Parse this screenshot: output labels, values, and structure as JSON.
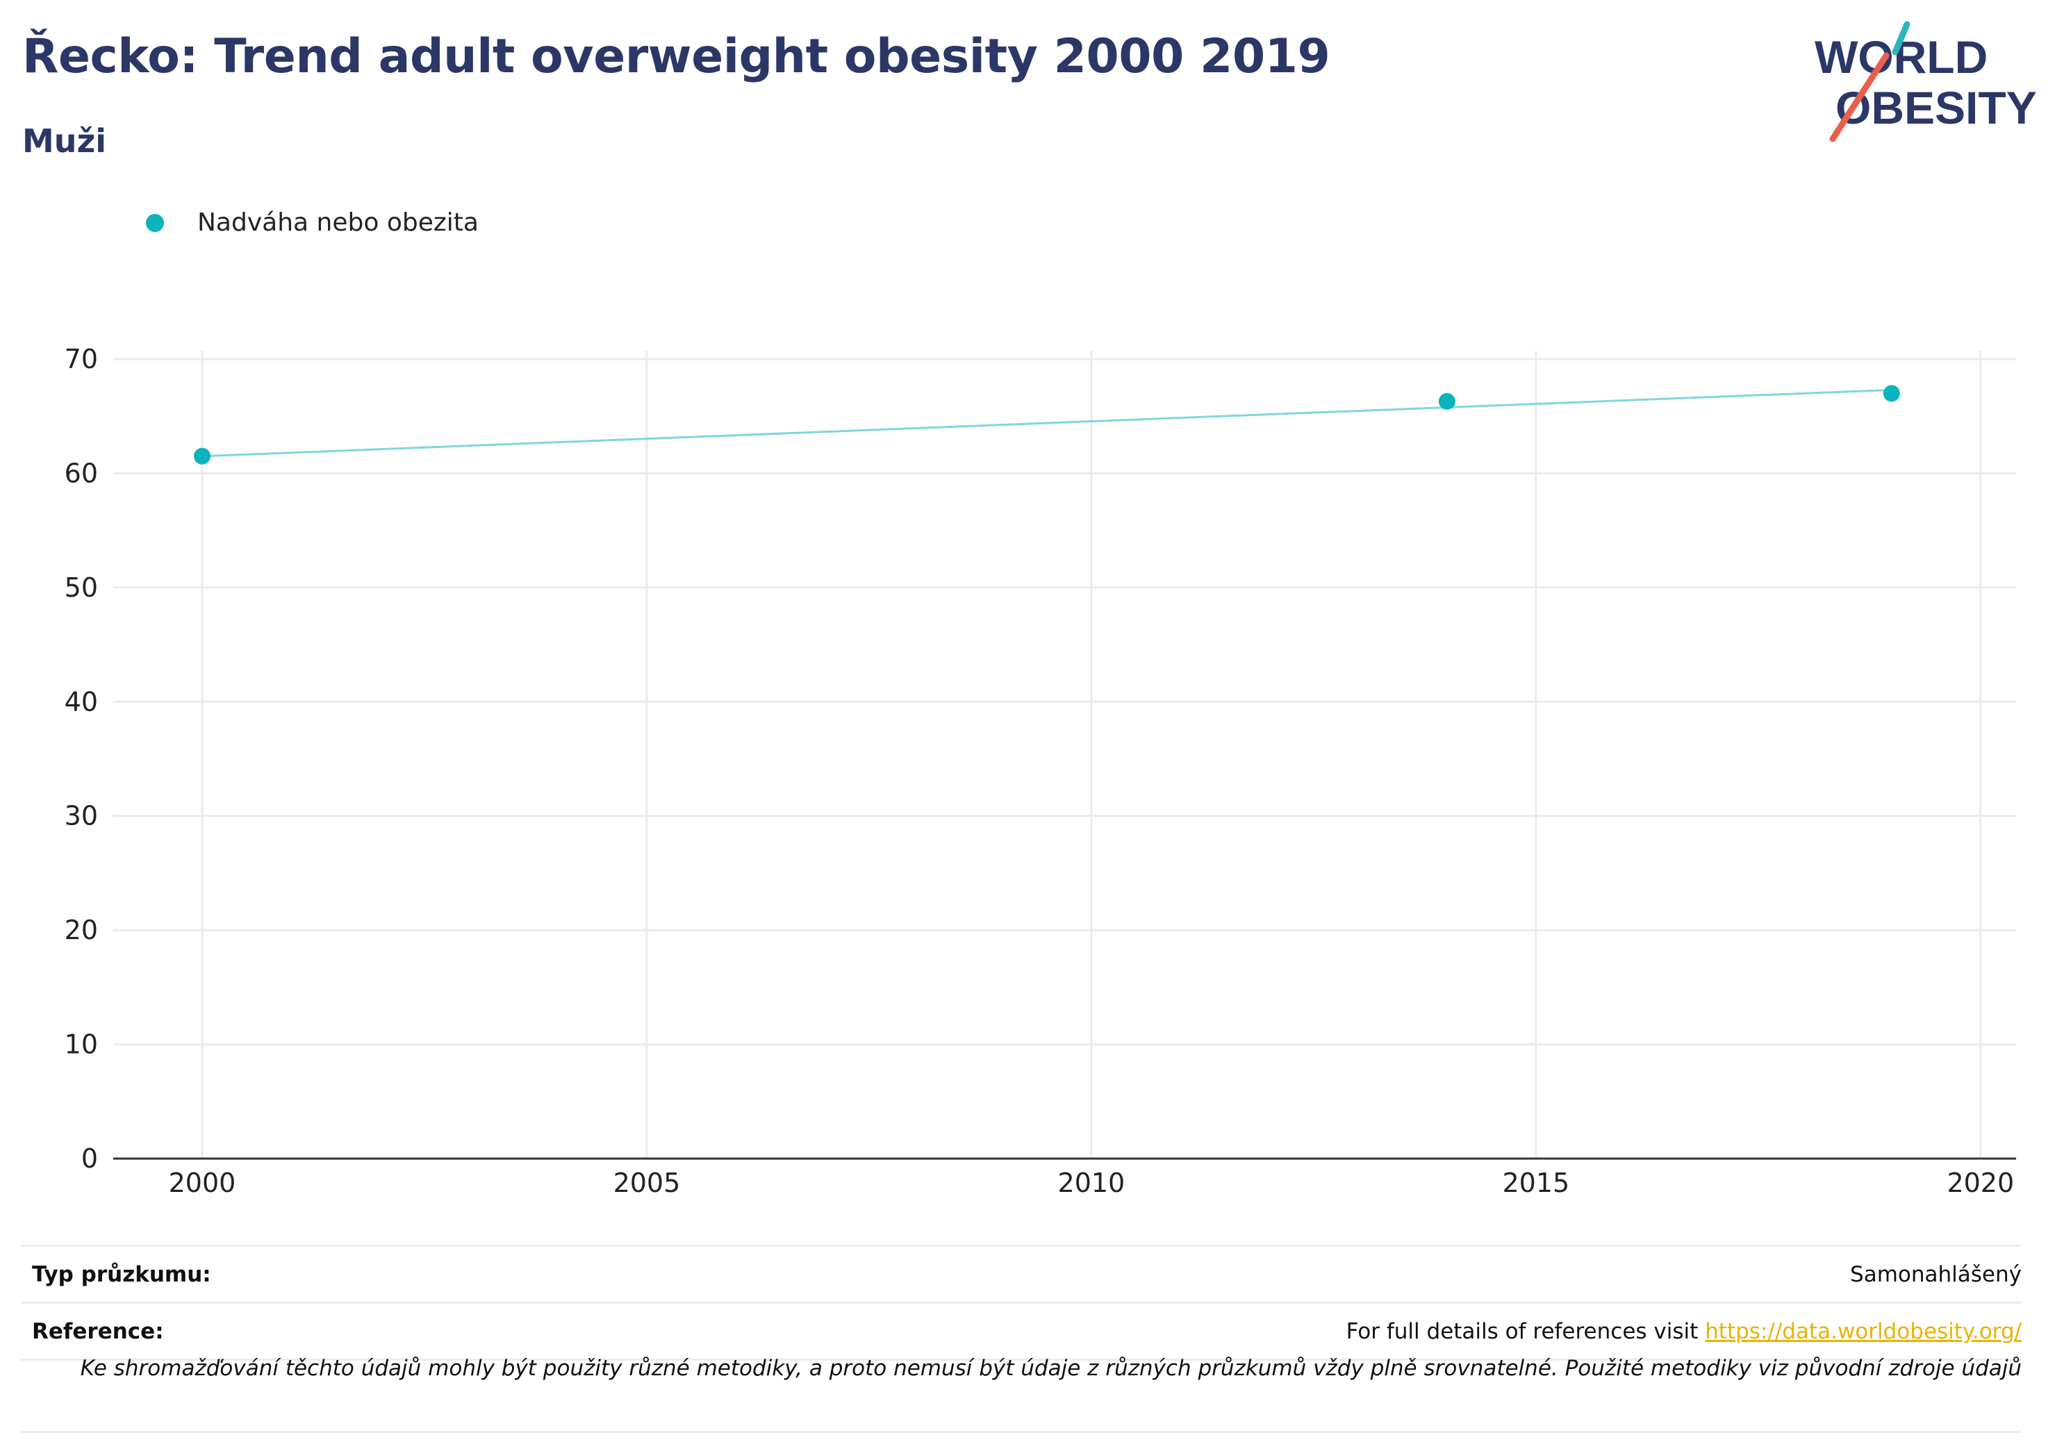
{
  "header": {
    "title": "Řecko: Trend adult overweight obesity 2000 2019",
    "subtitle": "Muži"
  },
  "logo": {
    "line1": "WORLD",
    "line2": "OBESITY",
    "color_text": "#2b3766",
    "color_teal": "#2cb5ba",
    "color_red": "#e8604c"
  },
  "legend": {
    "label": "Nadváha nebo obezita"
  },
  "colors": {
    "series_point": "#0cb3bd",
    "series_line": "#7fd7db",
    "grid": "#ebebeb",
    "axis": "#333333"
  },
  "chart_data": {
    "type": "scatter",
    "title": "Řecko: Trend adult overweight obesity 2000 2019",
    "subtitle": "Muži",
    "xlabel": "",
    "ylabel": "",
    "xlim": [
      1999,
      2020.4
    ],
    "ylim": [
      0,
      70
    ],
    "x_ticks": [
      2000,
      2005,
      2010,
      2015,
      2020
    ],
    "y_ticks": [
      0,
      10,
      20,
      30,
      40,
      50,
      60,
      70
    ],
    "grid": true,
    "legend_position": "top-left",
    "series": [
      {
        "name": "Nadváha nebo obezita",
        "x": [
          2000,
          2014,
          2019
        ],
        "y": [
          61.5,
          66.3,
          67.0
        ]
      }
    ],
    "trendline": {
      "x": [
        2000,
        2019
      ],
      "y": [
        61.5,
        67.3
      ]
    }
  },
  "footer": {
    "survey_type_label": "Typ průzkumu:",
    "survey_type_value": "Samonahlášený",
    "reference_label": "Reference:",
    "reference_text": "For full details of references visit ",
    "reference_link": "https://data.worldobesity.org/",
    "note": "Ke shromažďování těchto údajů mohly být použity různé metodiky, a proto nemusí být údaje z různých průzkumů vždy plně srovnatelné. Použité metodiky viz původní zdroje údajů"
  }
}
